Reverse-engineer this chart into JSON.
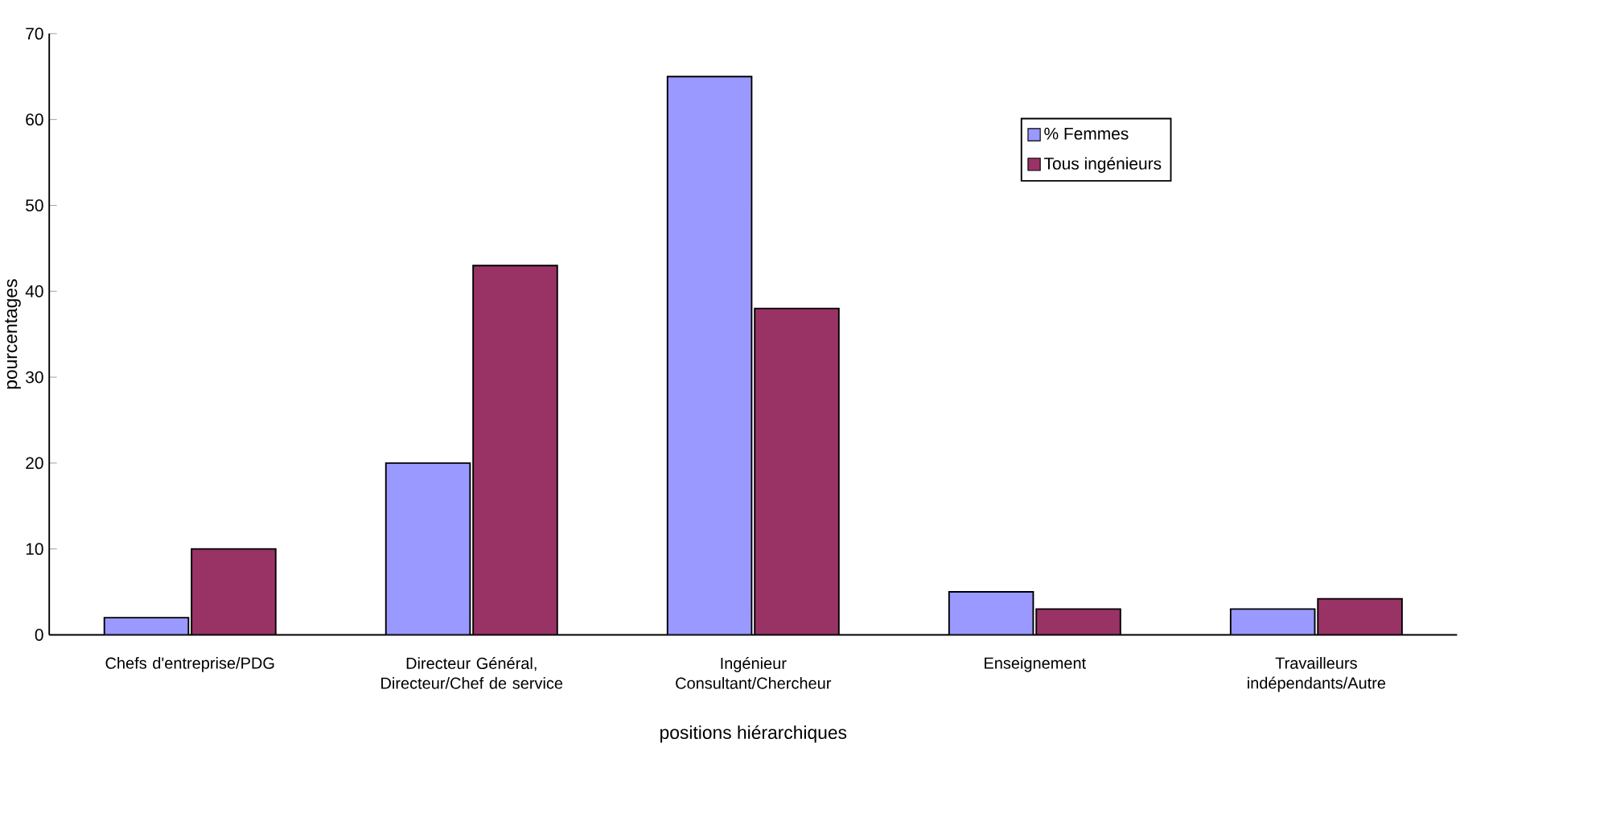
{
  "chart_data": {
    "type": "bar",
    "xlabel": "positions hiérarchiques",
    "ylabel": "pourcentages",
    "categories": [
      "Chefs d'entreprise/PDG",
      "Directeur Général, Directeur/Chef de service",
      "Ingénieur Consultant/Chercheur",
      "Enseignement",
      "Travailleurs indépendants/Autre"
    ],
    "series": [
      {
        "name": "% Femmes",
        "color": "#9999ff",
        "values": [
          2,
          20,
          65,
          5,
          3
        ]
      },
      {
        "name": "Tous ingénieurs",
        "color": "#993366",
        "values": [
          10,
          43,
          38,
          3,
          4.2
        ]
      }
    ],
    "ylim": [
      0,
      70
    ],
    "yticks": [
      0,
      10,
      20,
      30,
      40,
      50,
      60,
      70
    ],
    "grid": false,
    "legend": "top right"
  }
}
